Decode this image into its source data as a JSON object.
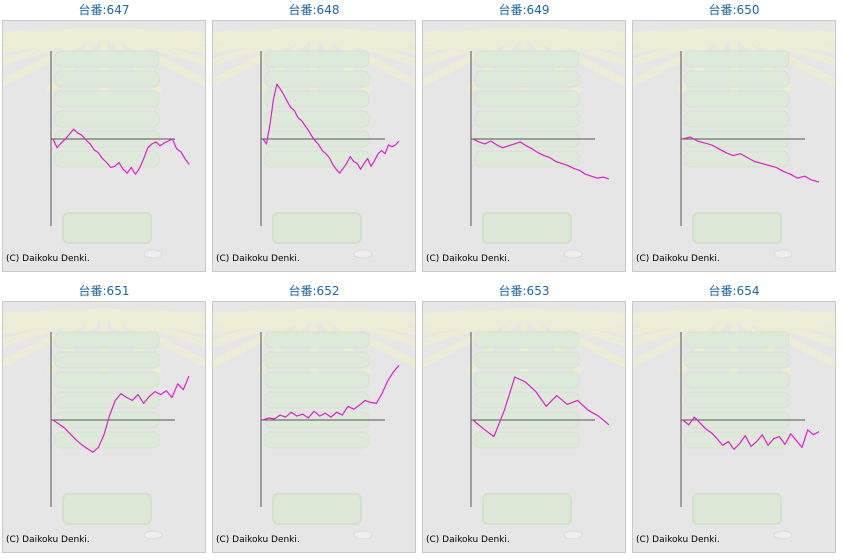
{
  "colors": {
    "title": "#1a66a8",
    "line": "#e81ad2",
    "axis": "#555555",
    "panel_bg": "#e6e6e6"
  },
  "machines": [
    {
      "label": "台番:647",
      "copyright": "(C) Daikoku Denki.",
      "chart_data": {
        "type": "line",
        "ylim": [
          -160,
          180
        ],
        "zero_label": "",
        "values": [
          0,
          -18,
          -8,
          0,
          10,
          20,
          12,
          8,
          -2,
          -10,
          -22,
          -28,
          -40,
          -48,
          -58,
          -56,
          -48,
          -62,
          -70,
          -58,
          -72,
          -60,
          -40,
          -18,
          -10,
          -6,
          -14,
          -8,
          -4,
          0,
          -20,
          -26,
          -40,
          -52
        ]
      }
    },
    {
      "label": "台番:648",
      "copyright": "(C) Daikoku Denki.",
      "chart_data": {
        "type": "line",
        "ylim": [
          -160,
          180
        ],
        "zero_label": "",
        "values": [
          0,
          -10,
          30,
          82,
          112,
          102,
          90,
          76,
          64,
          58,
          44,
          38,
          28,
          18,
          6,
          -4,
          -12,
          -24,
          -30,
          -38,
          -52,
          -62,
          -70,
          -60,
          -50,
          -36,
          -46,
          -50,
          -62,
          -50,
          -40,
          -56,
          -44,
          -30,
          -24,
          -30,
          -12,
          -16,
          -12,
          -4
        ]
      }
    },
    {
      "label": "台番:649",
      "copyright": "(C) Daikoku Denki.",
      "chart_data": {
        "type": "line",
        "ylim": [
          -160,
          180
        ],
        "zero_label": "",
        "values": [
          0,
          -6,
          -10,
          -4,
          -12,
          -18,
          -14,
          -10,
          -6,
          -14,
          -20,
          -28,
          -34,
          -38,
          -46,
          -50,
          -54,
          -60,
          -64,
          -72,
          -76,
          -80,
          -78,
          -82
        ]
      }
    },
    {
      "label": "台番:650",
      "copyright": "(C) Daikoku Denki.",
      "chart_data": {
        "type": "line",
        "ylim": [
          -160,
          180
        ],
        "zero_label": "",
        "values": [
          0,
          4,
          -4,
          -8,
          -12,
          -20,
          -28,
          -34,
          -30,
          -38,
          -46,
          -50,
          -54,
          -58,
          -66,
          -72,
          -80,
          -76,
          -84,
          -88
        ]
      }
    },
    {
      "label": "台番:651",
      "copyright": "(C) Daikoku Denki.",
      "chart_data": {
        "type": "line",
        "ylim": [
          -160,
          180
        ],
        "zero_label": "",
        "values": [
          0,
          -8,
          -16,
          -28,
          -40,
          -50,
          -58,
          -66,
          -56,
          -30,
          10,
          40,
          54,
          46,
          40,
          52,
          34,
          48,
          58,
          52,
          60,
          46,
          74,
          62,
          90
        ]
      }
    },
    {
      "label": "台番:652",
      "copyright": "(C) Daikoku Denki.",
      "chart_data": {
        "type": "line",
        "ylim": [
          -160,
          180
        ],
        "zero_label": "",
        "values": [
          0,
          4,
          2,
          10,
          6,
          16,
          8,
          12,
          4,
          18,
          8,
          14,
          6,
          16,
          10,
          28,
          22,
          30,
          40,
          36,
          34,
          54,
          80,
          98,
          112
        ]
      }
    },
    {
      "label": "台番:653",
      "copyright": "(C) Daikoku Denki.",
      "chart_data": {
        "type": "line",
        "ylim": [
          -160,
          180
        ],
        "zero_label": "",
        "values": [
          0,
          -18,
          -34,
          20,
          88,
          78,
          58,
          28,
          50,
          32,
          40,
          20,
          8,
          -10
        ]
      }
    },
    {
      "label": "台番:654",
      "copyright": "(C) Daikoku Denki.",
      "chart_data": {
        "type": "line",
        "ylim": [
          -160,
          180
        ],
        "zero_label": "",
        "values": [
          0,
          -10,
          6,
          -6,
          -18,
          -26,
          -38,
          -52,
          -44,
          -60,
          -48,
          -32,
          -54,
          -44,
          -30,
          -52,
          -38,
          -34,
          -50,
          -28,
          -42,
          -56,
          -20,
          -30,
          -24
        ]
      }
    }
  ]
}
